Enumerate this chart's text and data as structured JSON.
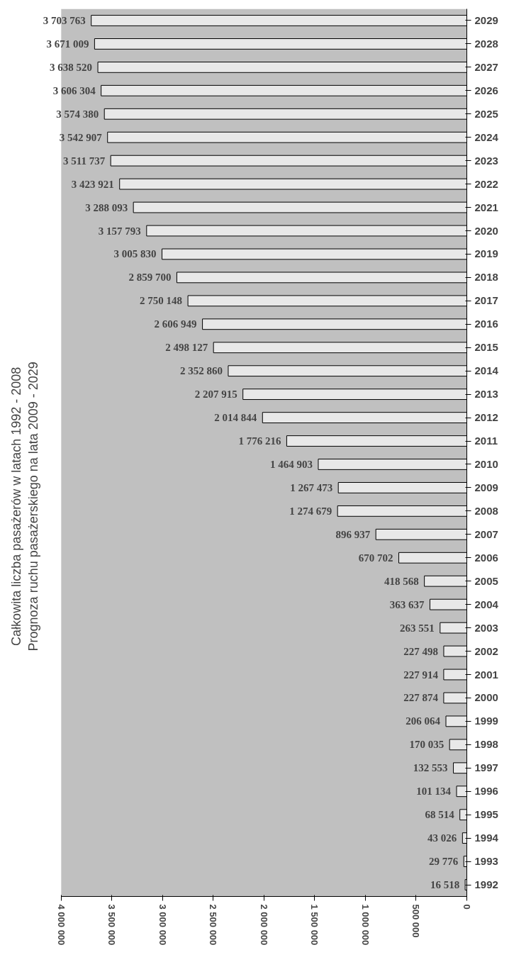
{
  "chart_data": {
    "type": "bar",
    "orientation": "horizontal",
    "ylabel": "Całkowita liczba pasażerów w latach 1992 - 2008\nPrognoza ruchu pasażerskiego na lata 2009 - 2029",
    "categories": [
      "2029",
      "2028",
      "2027",
      "2026",
      "2025",
      "2024",
      "2023",
      "2022",
      "2021",
      "2020",
      "2019",
      "2018",
      "2017",
      "2016",
      "2015",
      "2014",
      "2013",
      "2012",
      "2011",
      "2010",
      "2009",
      "2008",
      "2007",
      "2006",
      "2005",
      "2004",
      "2003",
      "2002",
      "2001",
      "2000",
      "1999",
      "1998",
      "1997",
      "1996",
      "1995",
      "1994",
      "1993",
      "1992"
    ],
    "values": [
      3703763,
      3671009,
      3638520,
      3606304,
      3574380,
      3542907,
      3511737,
      3423921,
      3288093,
      3157793,
      3005830,
      2859700,
      2750148,
      2606949,
      2498127,
      2352860,
      2207915,
      2014844,
      1776216,
      1464903,
      1267473,
      1274679,
      896937,
      670702,
      418568,
      363637,
      263551,
      227498,
      227914,
      227874,
      206064,
      170035,
      132553,
      101134,
      68514,
      43026,
      29776,
      16518
    ],
    "value_labels": [
      "3 703 763",
      "3 671 009",
      "3 638 520",
      "3 606 304",
      "3 574 380",
      "3 542 907",
      "3 511 737",
      "3 423 921",
      "3 288 093",
      "3 157 793",
      "3 005 830",
      "2 859 700",
      "2 750 148",
      "2 606 949",
      "2 498 127",
      "2 352 860",
      "2 207 915",
      "2 014 844",
      "1 776 216",
      "1 464 903",
      "1 267 473",
      "1 274 679",
      "896 937",
      "670 702",
      "418 568",
      "363 637",
      "263 551",
      "227 498",
      "227 914",
      "227 874",
      "206 064",
      "170 035",
      "132 553",
      "101 134",
      "68 514",
      "43 026",
      "29 776",
      "16 518"
    ],
    "color": "#e8e8e8",
    "xlim": [
      4000000,
      0
    ],
    "xticks": [
      {
        "value": 4000000,
        "label": "4 000 000"
      },
      {
        "value": 3500000,
        "label": "3 500 000"
      },
      {
        "value": 3000000,
        "label": "3 000 000"
      },
      {
        "value": 2500000,
        "label": "2 500 000"
      },
      {
        "value": 2000000,
        "label": "2 000 000"
      },
      {
        "value": 1500000,
        "label": "1 500 000"
      },
      {
        "value": 1000000,
        "label": "1 000 000"
      },
      {
        "value": 500000,
        "label": "500 000"
      },
      {
        "value": 0,
        "label": "0"
      }
    ],
    "grid": false
  }
}
